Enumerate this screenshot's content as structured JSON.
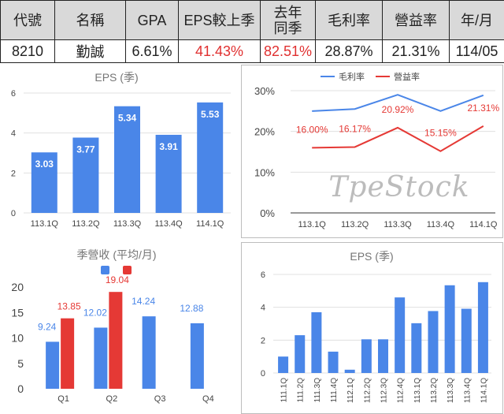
{
  "summary": {
    "headers": [
      "代號",
      "名稱",
      "GPA",
      "EPS較上季",
      "去年同季",
      "毛利率",
      "營益率",
      "年/月"
    ],
    "values": [
      "8210",
      "勤誠",
      "6.61%",
      "41.43%",
      "82.51%",
      "28.87%",
      "21.31%",
      "114/05"
    ],
    "colors": {
      "positive": "#e03030",
      "header_bg": "#d9d9d9"
    }
  },
  "watermark": "TpeStock",
  "chart_data": [
    {
      "id": "eps_quarterly",
      "type": "bar",
      "title": "EPS (季)",
      "categories": [
        "113.1Q",
        "113.2Q",
        "113.3Q",
        "113.4Q",
        "114.1Q"
      ],
      "values": [
        3.03,
        3.77,
        5.34,
        3.91,
        5.53
      ],
      "data_labels": [
        "3.03",
        "3.77",
        "5.34",
        "3.91",
        "5.53"
      ],
      "ylim": [
        0,
        6
      ],
      "yticks": [
        0,
        2,
        4,
        6
      ],
      "ytick_labels": [
        "0",
        "2",
        "4",
        "6"
      ],
      "color": "#4a86e8",
      "grid": true
    },
    {
      "id": "margins",
      "type": "line",
      "categories": [
        "113.1Q",
        "113.2Q",
        "113.3Q",
        "113.4Q",
        "114.1Q"
      ],
      "series": [
        {
          "name": "毛利率",
          "color": "#4a86e8",
          "values": [
            25.0,
            25.5,
            29.0,
            25.0,
            28.87
          ],
          "labels": [
            "",
            "",
            "",
            "",
            ""
          ]
        },
        {
          "name": "營益率",
          "color": "#e53935",
          "values": [
            16.0,
            16.17,
            20.92,
            15.15,
            21.31
          ],
          "labels": [
            "16.00%",
            "16.17%",
            "20.92%",
            "15.15%",
            "21.31%"
          ]
        }
      ],
      "ylim": [
        0,
        30
      ],
      "yticks": [
        0,
        10,
        20,
        30
      ],
      "ytick_labels": [
        "0%",
        "10%",
        "20%",
        "30%"
      ],
      "legend": "top",
      "grid": true
    },
    {
      "id": "monthly_revenue",
      "type": "bar",
      "title": "季營收 (平均/月)",
      "categories": [
        "Q1",
        "Q2",
        "Q3",
        "Q4"
      ],
      "series": [
        {
          "name": "",
          "color": "#4a86e8",
          "values": [
            9.24,
            12.02,
            14.24,
            12.88
          ],
          "labels": [
            "9.24",
            "12.02",
            "14.24",
            "12.88"
          ]
        },
        {
          "name": "",
          "color": "#e53935",
          "values": [
            13.85,
            19.04,
            null,
            null
          ],
          "labels": [
            "13.85",
            "19.04",
            "",
            ""
          ]
        }
      ],
      "ylim": [
        0,
        20
      ],
      "yticks": [
        0,
        5,
        10,
        15,
        20
      ],
      "ytick_labels": [
        "0",
        "5",
        "10",
        "15",
        "20"
      ],
      "legend": "top"
    },
    {
      "id": "eps_long",
      "type": "bar",
      "title": "EPS  (季)",
      "categories": [
        "111.1Q",
        "111.2Q",
        "111.3Q",
        "111.4Q",
        "112.1Q",
        "112.2Q",
        "112.3Q",
        "112.4Q",
        "113.1Q",
        "113.2Q",
        "113.3Q",
        "113.4Q",
        "114.1Q"
      ],
      "values": [
        1.0,
        2.3,
        3.7,
        1.3,
        0.2,
        2.05,
        2.05,
        4.6,
        3.03,
        3.77,
        5.34,
        3.91,
        5.53
      ],
      "ylim": [
        0,
        6
      ],
      "yticks": [
        0,
        2,
        4,
        6
      ],
      "ytick_labels": [
        "0",
        "2",
        "4",
        "6"
      ],
      "color": "#4a86e8",
      "grid": true
    }
  ]
}
